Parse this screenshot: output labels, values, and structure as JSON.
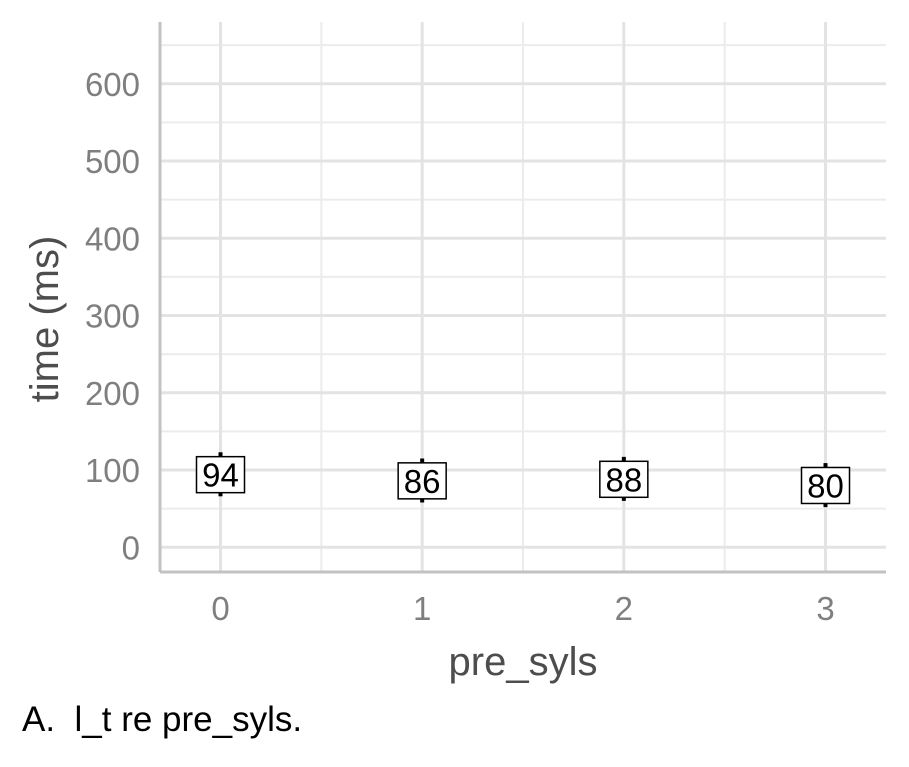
{
  "chart_data": {
    "type": "scatter",
    "x": [
      0,
      1,
      2,
      3
    ],
    "xlim": [
      -0.3,
      3.3
    ],
    "ylim": [
      -32,
      680
    ],
    "x_ticks": [
      "0",
      "1",
      "2",
      "3"
    ],
    "y_ticks": [
      "0",
      "100",
      "200",
      "300",
      "400",
      "500",
      "600"
    ],
    "xlabel": "pre_syls",
    "ylabel": "time (ms)",
    "grid": true,
    "series": [
      {
        "values": [
          94,
          86,
          88,
          80
        ],
        "labels": [
          "94",
          "86",
          "88",
          "80"
        ],
        "error_low": [
          66,
          58,
          60,
          52
        ],
        "error_high": [
          123,
          115,
          117,
          109
        ]
      }
    ]
  },
  "caption": "A.  l_t re pre_syls."
}
